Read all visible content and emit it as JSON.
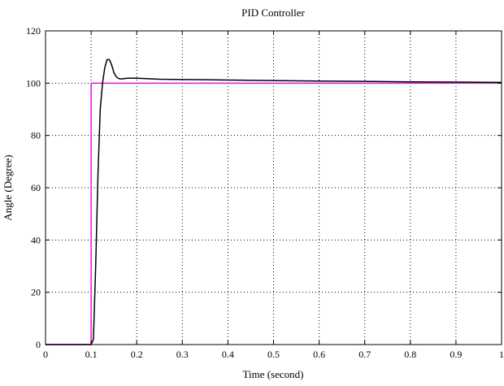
{
  "chart_data": {
    "type": "line",
    "title": "PID Controller",
    "xlabel": "Time (second)",
    "ylabel": "Angle (Degree)",
    "xlim": [
      0,
      1
    ],
    "ylim": [
      0,
      120
    ],
    "x_ticks": [
      0,
      0.1,
      0.2,
      0.3,
      0.4,
      0.5,
      0.6,
      0.7,
      0.8,
      0.9,
      1
    ],
    "x_tick_labels": [
      "0",
      "0.1",
      "0.2",
      "0.3",
      "0.4",
      "0.5",
      "0.6",
      "0.7",
      "0.8",
      "0.9",
      "1"
    ],
    "y_ticks": [
      0,
      20,
      40,
      60,
      80,
      100,
      120
    ],
    "y_tick_labels": [
      "0",
      "20",
      "40",
      "60",
      "80",
      "100",
      "120"
    ],
    "grid": true,
    "series": [
      {
        "color": "#ff00ff",
        "x": [
          0,
          0.1,
          0.1,
          1
        ],
        "y": [
          0,
          0,
          100,
          100
        ]
      },
      {
        "color": "#000000",
        "x": [
          0,
          0.1,
          0.105,
          0.11,
          0.115,
          0.12,
          0.125,
          0.13,
          0.135,
          0.14,
          0.145,
          0.15,
          0.155,
          0.16,
          0.165,
          0.17,
          0.18,
          0.2,
          0.25,
          0.3,
          0.4,
          0.5,
          0.6,
          0.7,
          0.8,
          0.9,
          1
        ],
        "y": [
          0,
          0,
          2,
          30,
          65,
          90,
          100,
          106,
          109,
          109,
          107,
          104,
          102.5,
          101.8,
          101.6,
          101.7,
          101.9,
          101.9,
          101.5,
          101.4,
          101.2,
          101.0,
          100.8,
          100.7,
          100.5,
          100.4,
          100.3
        ]
      }
    ]
  }
}
